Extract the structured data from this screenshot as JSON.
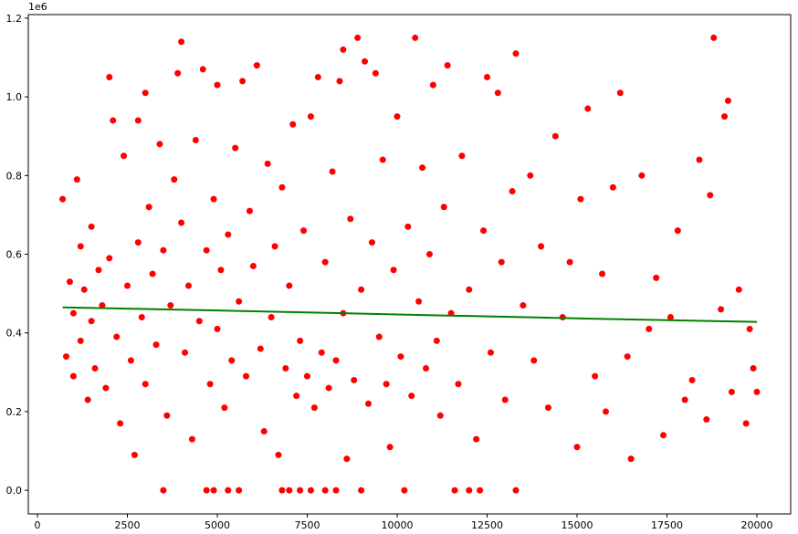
{
  "chart_data": {
    "type": "scatter",
    "offset_label": "1e6",
    "xlim": [
      -254,
      20940
    ],
    "ylim": [
      -0.06,
      1.209
    ],
    "xticks": [
      0,
      2500,
      5000,
      7500,
      10000,
      12500,
      15000,
      17500,
      20000
    ],
    "yticks": [
      {
        "value": 0,
        "label": "0.0"
      },
      0.2,
      0.4,
      0.6,
      0.8,
      {
        "value": 1,
        "label": "1.0"
      },
      1.2
    ],
    "grid": false,
    "series": [
      {
        "kind": "scatter",
        "color": "#ff0000",
        "x": [
          700,
          800,
          900,
          1000,
          1000,
          1100,
          1200,
          1200,
          1300,
          1400,
          1500,
          1500,
          1600,
          1700,
          1800,
          1900,
          2000,
          2000,
          2100,
          2200,
          2300,
          2400,
          2500,
          2600,
          2700,
          2800,
          2800,
          2900,
          3000,
          3000,
          3100,
          3200,
          3300,
          3400,
          3500,
          3500,
          3600,
          3700,
          3800,
          3900,
          4000,
          4000,
          4100,
          4200,
          4300,
          4400,
          4500,
          4600,
          4700,
          4700,
          4800,
          4900,
          4900,
          5000,
          5000,
          5100,
          5200,
          5300,
          5300,
          5400,
          5500,
          5600,
          5600,
          5700,
          5800,
          5900,
          6000,
          6100,
          6200,
          6300,
          6400,
          6500,
          6600,
          6700,
          6800,
          6800,
          6900,
          7000,
          7000,
          7100,
          7200,
          7300,
          7300,
          7400,
          7500,
          7600,
          7600,
          7700,
          7800,
          7900,
          8000,
          8000,
          8100,
          8200,
          8300,
          8300,
          8400,
          8500,
          8500,
          8600,
          8700,
          8800,
          8900,
          9000,
          9000,
          9100,
          9200,
          9300,
          9400,
          9500,
          9600,
          9700,
          9800,
          9900,
          10000,
          10100,
          10200,
          10300,
          10400,
          10500,
          10600,
          10700,
          10800,
          10900,
          11000,
          11100,
          11200,
          11300,
          11400,
          11500,
          11600,
          11700,
          11800,
          12000,
          12000,
          12200,
          12300,
          12400,
          12500,
          12600,
          12800,
          12900,
          13000,
          13200,
          13300,
          13300,
          13500,
          13700,
          13800,
          14000,
          14200,
          14400,
          14600,
          14800,
          15000,
          15100,
          15300,
          15500,
          15700,
          15800,
          16000,
          16200,
          16400,
          16500,
          16800,
          17000,
          17200,
          17400,
          17600,
          17800,
          18000,
          18200,
          18400,
          18600,
          18700,
          18800,
          19000,
          19100,
          19200,
          19300,
          19500,
          19700,
          19900,
          20000,
          19800
        ],
        "values": [
          0.74,
          0.34,
          0.53,
          0.45,
          0.29,
          0.79,
          0.62,
          0.38,
          0.51,
          0.23,
          0.67,
          0.43,
          0.31,
          0.56,
          0.47,
          0.26,
          1.05,
          0.59,
          0.94,
          0.39,
          0.17,
          0.85,
          0.52,
          0.33,
          0.09,
          0.94,
          0.63,
          0.44,
          1.01,
          0.27,
          0.72,
          0.55,
          0.37,
          0.88,
          0,
          0.61,
          0.19,
          0.47,
          0.79,
          1.06,
          1.14,
          0.68,
          0.35,
          0.52,
          0.13,
          0.89,
          0.43,
          1.07,
          0,
          0.61,
          0.27,
          0,
          0.74,
          1.03,
          0.41,
          0.56,
          0.21,
          0,
          0.65,
          0.33,
          0.87,
          0,
          0.48,
          1.04,
          0.29,
          0.71,
          0.57,
          1.08,
          0.36,
          0.15,
          0.83,
          0.44,
          0.62,
          0.09,
          0,
          0.77,
          0.31,
          0,
          0.52,
          0.93,
          0.24,
          0,
          0.38,
          0.66,
          0.29,
          0,
          0.95,
          0.21,
          1.05,
          0.35,
          0,
          0.58,
          0.26,
          0.81,
          0,
          0.33,
          1.04,
          1.12,
          0.45,
          0.08,
          0.69,
          0.28,
          1.15,
          0,
          0.51,
          1.09,
          0.22,
          0.63,
          1.06,
          0.39,
          0.84,
          0.27,
          0.11,
          0.56,
          0.95,
          0.34,
          0,
          0.67,
          0.24,
          1.15,
          0.48,
          0.82,
          0.31,
          0.6,
          1.03,
          0.38,
          0.19,
          0.72,
          1.08,
          0.45,
          0,
          0.27,
          0.85,
          0,
          0.51,
          0.13,
          0,
          0.66,
          1.05,
          0.35,
          1.01,
          0.58,
          0.23,
          0.76,
          0,
          1.11,
          0.47,
          0.8,
          0.33,
          0.62,
          0.21,
          0.9,
          0.44,
          0.58,
          0.11,
          0.74,
          0.97,
          0.29,
          0.55,
          0.2,
          0.77,
          1.01,
          0.34,
          0.08,
          0.8,
          0.41,
          0.54,
          0.14,
          0.44,
          0.66,
          0.23,
          0.28,
          0.84,
          0.18,
          0.75,
          1.15,
          0.46,
          0.95,
          0.99,
          0.25,
          0.51,
          0.17,
          0.31,
          0.25,
          0.41
        ]
      },
      {
        "kind": "line",
        "color": "#008000",
        "x": [
          700,
          5000,
          10000,
          15000,
          20000
        ],
        "values": [
          0.465,
          0.457,
          0.447,
          0.437,
          0.428
        ]
      }
    ]
  }
}
